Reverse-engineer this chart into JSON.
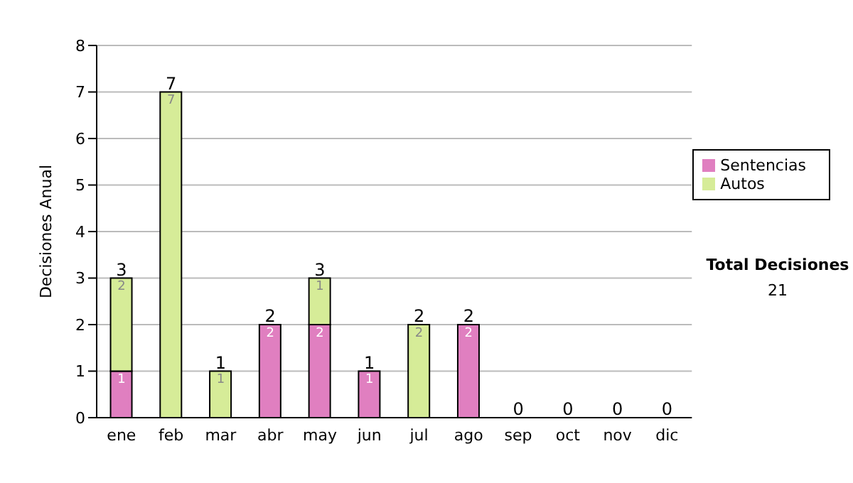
{
  "chart_data": {
    "type": "bar",
    "ylabel": "Decisiones Anual",
    "categories": [
      "ene",
      "feb",
      "mar",
      "abr",
      "may",
      "jun",
      "jul",
      "ago",
      "sep",
      "oct",
      "nov",
      "dic"
    ],
    "series": [
      {
        "name": "Sentencias",
        "color": "#e07fc0",
        "values": [
          1,
          0,
          0,
          2,
          2,
          1,
          0,
          2,
          0,
          0,
          0,
          0
        ],
        "value_labels": [
          "1",
          null,
          null,
          "2",
          "2",
          "1",
          null,
          "2",
          null,
          null,
          null,
          null
        ]
      },
      {
        "name": "Autos",
        "color": "#d6ec98",
        "values": [
          2,
          7,
          1,
          0,
          1,
          0,
          2,
          0,
          0,
          0,
          0,
          0
        ],
        "value_labels": [
          "2",
          "7",
          "1",
          null,
          "1",
          null,
          "2",
          null,
          null,
          null,
          null,
          null
        ]
      }
    ],
    "stacked": true,
    "totals": [
      "3",
      "7",
      "1",
      "2",
      "3",
      "1",
      "2",
      "2",
      "0",
      "0",
      "0",
      "0"
    ],
    "ylim": [
      0,
      8
    ],
    "yticks": [
      0,
      1,
      2,
      3,
      4,
      5,
      6,
      7,
      8
    ],
    "grid": "y",
    "legend": "right",
    "annotations": [
      "Total Decisiones",
      "21"
    ]
  }
}
